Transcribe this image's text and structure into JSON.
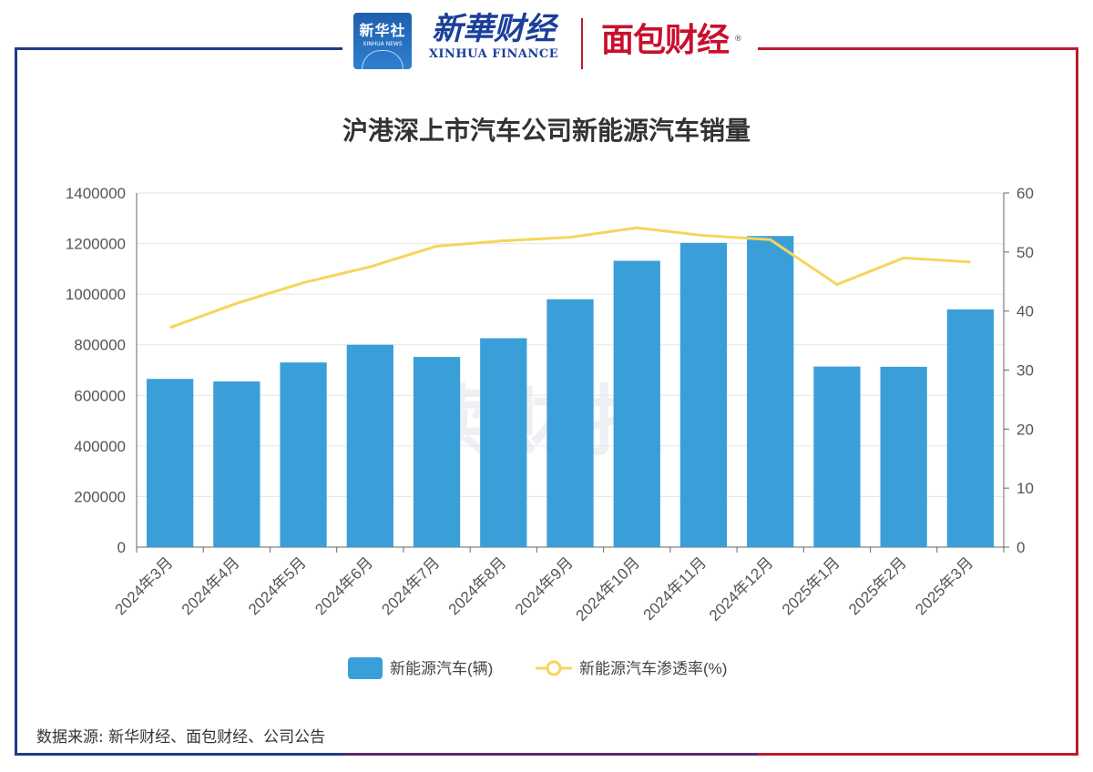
{
  "header": {
    "xinhua_badge_text": "新华社",
    "xinhua_badge_sub": "XINHUA NEWS",
    "xf_logo_cn": "新華财经",
    "xf_logo_en": "XINHUA FINANCE",
    "mb_logo": "面包财经",
    "mb_logo_reg": "®"
  },
  "watermark": "读财报",
  "source": "数据来源: 新华财经、面包财经、公司公告",
  "colors": {
    "bar": "#3a9fd8",
    "line": "#f6d55c",
    "frame_left": "#1f3a8a",
    "frame_right": "#b91c2c"
  },
  "chart_data": {
    "type": "bar",
    "title": "沪港深上市汽车公司新能源汽车销量",
    "categories": [
      "2024年3月",
      "2024年4月",
      "2024年5月",
      "2024年6月",
      "2024年7月",
      "2024年8月",
      "2024年9月",
      "2024年10月",
      "2024年11月",
      "2024年12月",
      "2025年1月",
      "2025年2月",
      "2025年3月"
    ],
    "series": [
      {
        "name": "新能源汽车(辆)",
        "type": "bar",
        "axis": "left",
        "values": [
          665000,
          655000,
          730000,
          800000,
          752000,
          826000,
          980000,
          1132000,
          1203000,
          1230000,
          714000,
          713000,
          940000
        ]
      },
      {
        "name": "新能源汽车渗透率(%)",
        "type": "line",
        "axis": "right",
        "values": [
          37.2,
          41.3,
          44.8,
          47.5,
          51.0,
          51.9,
          52.5,
          54.1,
          52.8,
          52.1,
          44.5,
          49.0,
          48.3
        ]
      }
    ],
    "y_left": {
      "min": 0,
      "max": 1400000,
      "ticks": [
        0,
        200000,
        400000,
        600000,
        800000,
        1000000,
        1200000,
        1400000
      ]
    },
    "y_right": {
      "min": 0,
      "max": 60,
      "ticks": [
        0,
        10,
        20,
        30,
        40,
        50,
        60
      ]
    },
    "grid": true,
    "legend_position": "bottom-center"
  }
}
